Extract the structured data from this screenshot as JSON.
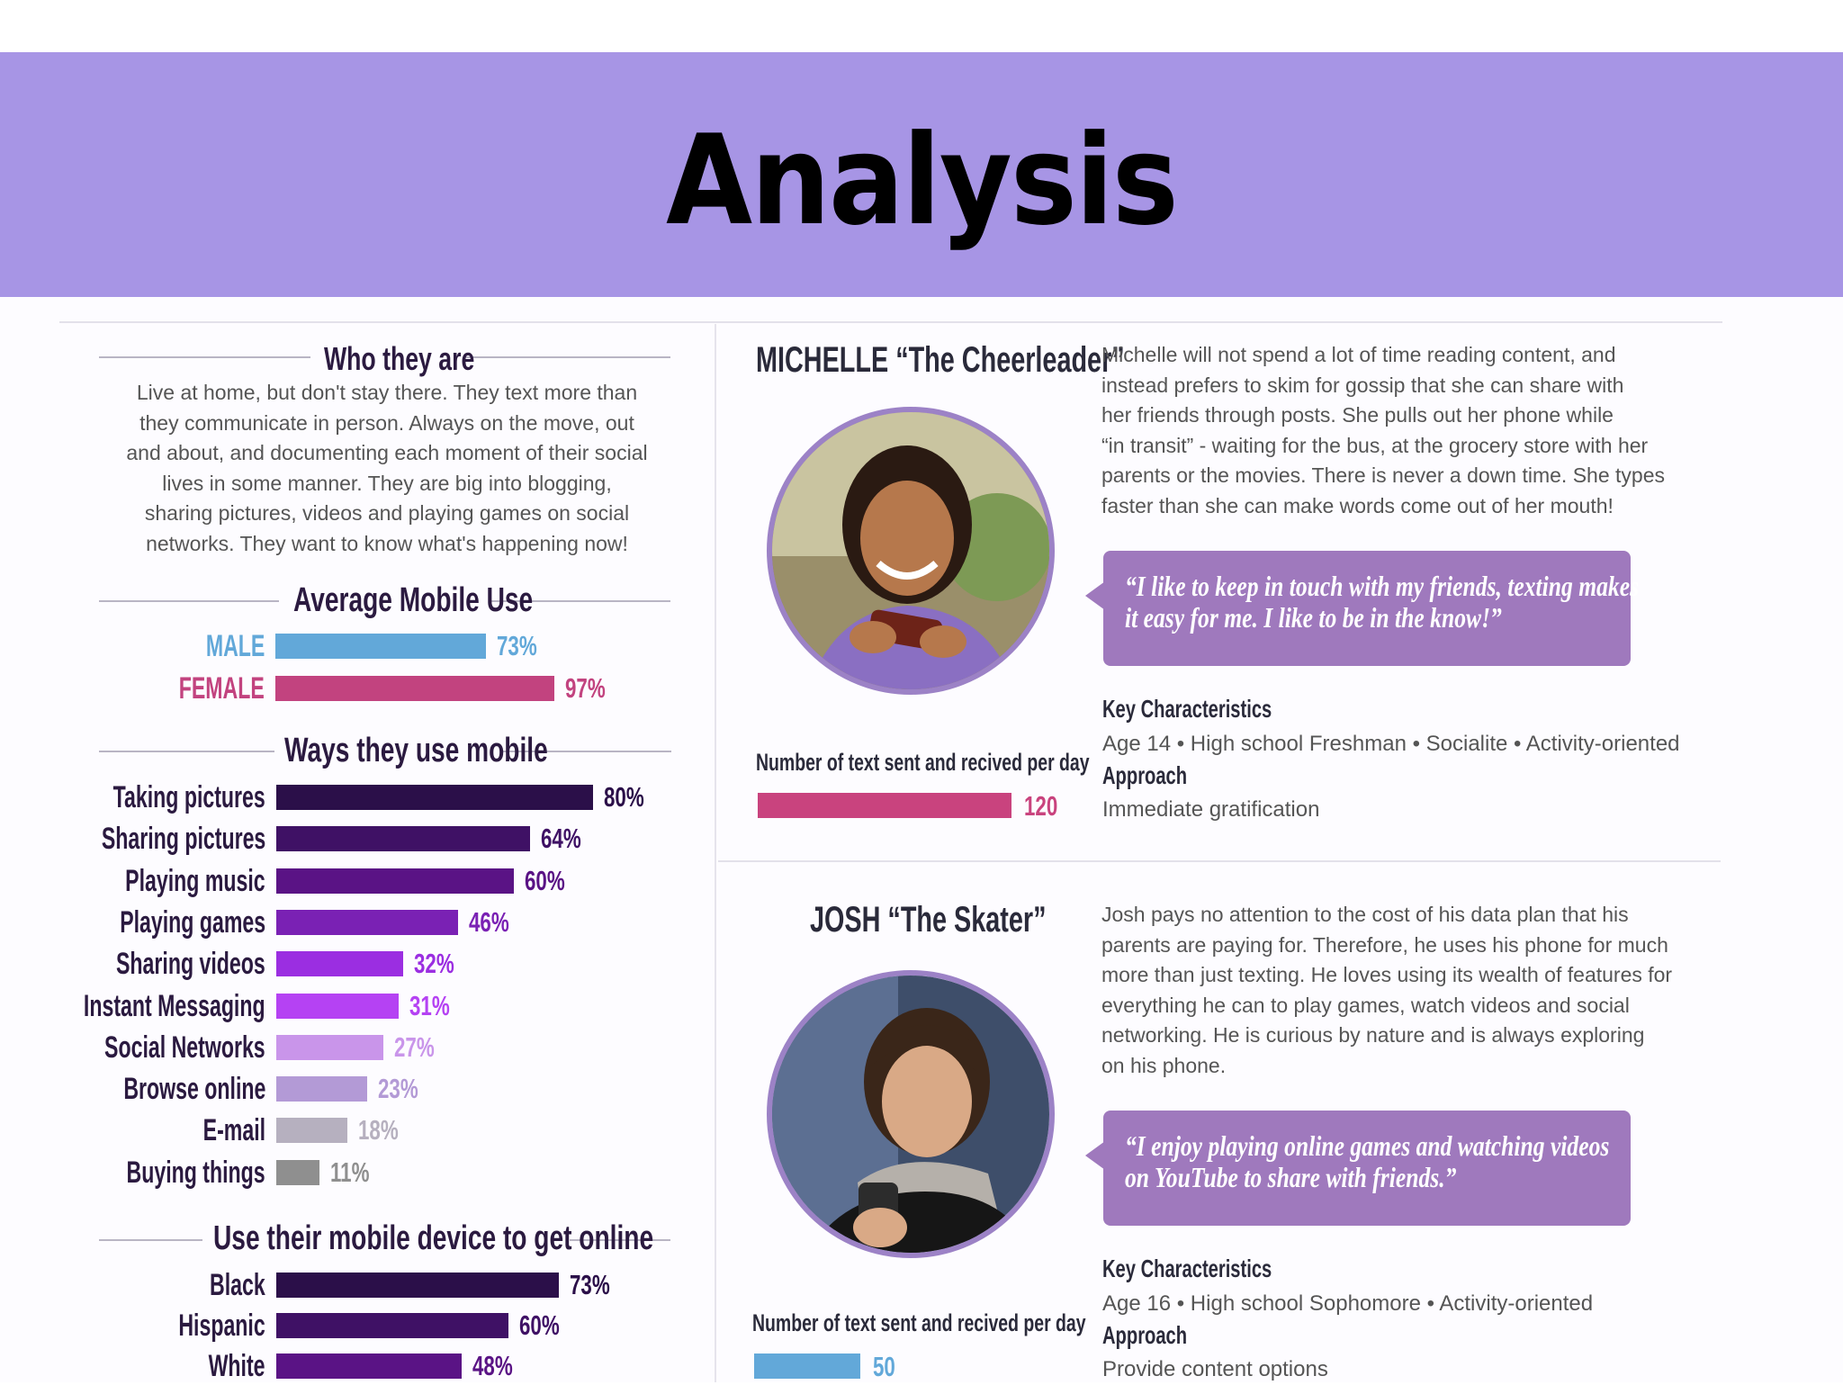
{
  "slide": {
    "title": "Analysis"
  },
  "who": {
    "heading": "Who they are",
    "lines": [
      "Live at home, but don't stay there. They text more than",
      "they communicate in person. Always on the move, out",
      "and about, and documenting each moment of their social",
      "lives in some manner. They are big into blogging,",
      "sharing pictures, videos and playing games on social",
      "networks. They want to know what's happening now!"
    ]
  },
  "avg_use": {
    "heading": "Average Mobile Use",
    "rows": [
      {
        "label": "MALE",
        "value": 73,
        "value_text": "73%",
        "color": "#62a8d9"
      },
      {
        "label": "FEMALE",
        "value": 97,
        "value_text": "97%",
        "color": "#c2437f"
      }
    ]
  },
  "ways": {
    "heading": "Ways they use mobile",
    "rows": [
      {
        "label": "Taking pictures",
        "value": 80,
        "value_text": "80%",
        "color": "#2b0f49"
      },
      {
        "label": "Sharing pictures",
        "value": 64,
        "value_text": "64%",
        "color": "#3f1165"
      },
      {
        "label": "Playing music",
        "value": 60,
        "value_text": "60%",
        "color": "#5a1385"
      },
      {
        "label": "Playing games",
        "value": 46,
        "value_text": "46%",
        "color": "#7a21b4"
      },
      {
        "label": "Sharing videos",
        "value": 32,
        "value_text": "32%",
        "color": "#9b2ee1"
      },
      {
        "label": "Instant Messaging",
        "value": 31,
        "value_text": "31%",
        "color": "#b542f3"
      },
      {
        "label": "Social Networks",
        "value": 27,
        "value_text": "27%",
        "color": "#c995ea"
      },
      {
        "label": "Browse online",
        "value": 23,
        "value_text": "23%",
        "color": "#b39ad6"
      },
      {
        "label": "E-mail",
        "value": 18,
        "value_text": "18%",
        "color": "#b6b0bf"
      },
      {
        "label": "Buying things",
        "value": 11,
        "value_text": "11%",
        "color": "#8f8f8f"
      }
    ]
  },
  "online": {
    "heading": "Use their mobile device to get online",
    "rows": [
      {
        "label": "Black",
        "value": 73,
        "value_text": "73%",
        "color": "#2b0f49"
      },
      {
        "label": "Hispanic",
        "value": 60,
        "value_text": "60%",
        "color": "#3f1165"
      },
      {
        "label": "White",
        "value": 48,
        "value_text": "48%",
        "color": "#5a1385"
      }
    ]
  },
  "michelle": {
    "name": "MICHELLE “The Cheerleader”",
    "desc_lines": [
      "Michelle will not spend a lot of time reading content, and",
      "instead prefers to skim for gossip that she can share with",
      "her friends through posts. She pulls out her phone while",
      "“in transit” - waiting for the bus, at the grocery store with her",
      "parents or the movies. There is never a down time. She types",
      "faster than she can make words come out of her mouth!"
    ],
    "quote_lines": [
      "“I like to keep in touch with my friends, texting makes",
      "it easy for me. I like to be in the know!”"
    ],
    "key_head": "Key Characteristics",
    "key_text": "Age 14 • High school Freshman • Socialite • Activity-oriented",
    "approach_head": "Approach",
    "approach_text": "Immediate gratification",
    "texts_label": "Number of text sent and recived per day",
    "texts_value": 120,
    "texts_color": "#c9437e"
  },
  "josh": {
    "name": "JOSH “The Skater”",
    "desc_lines": [
      "Josh pays no attention to the cost of his data plan that his",
      "parents are paying for. Therefore, he uses his phone for much",
      "more than just texting. He loves using its wealth of features for",
      "everything he can to play games, watch videos and social",
      "networking. He is curious by nature and is always exploring",
      "on his phone."
    ],
    "quote_lines": [
      "“I enjoy playing online games and watching videos",
      "on YouTube to share with friends.”"
    ],
    "key_head": "Key Characteristics",
    "key_text": "Age 16 • High school Sophomore • Activity-oriented",
    "approach_head": "Approach",
    "approach_text": "Provide content options",
    "texts_label": "Number of text sent and recived per day",
    "texts_value": 50,
    "texts_color": "#62a8d9"
  }
}
